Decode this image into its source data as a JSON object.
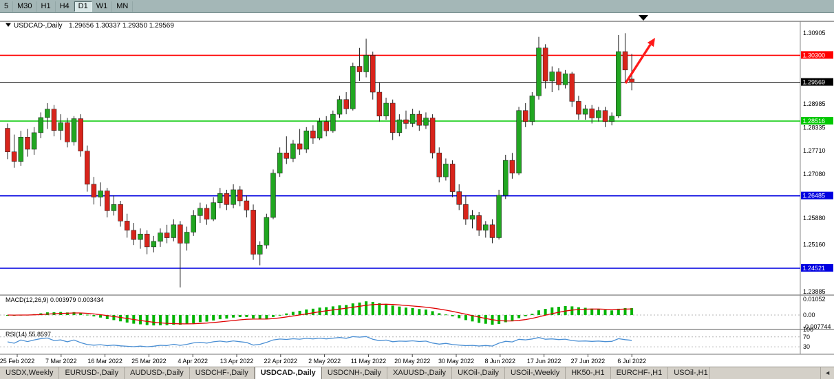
{
  "toolbar": {
    "periods": [
      {
        "label": "5",
        "active": false
      },
      {
        "label": "M30",
        "active": false
      },
      {
        "label": "H1",
        "active": false
      },
      {
        "label": "H4",
        "active": false
      },
      {
        "label": "D1",
        "active": true
      },
      {
        "label": "W1",
        "active": false
      },
      {
        "label": "MN",
        "active": false
      }
    ]
  },
  "chart": {
    "symbol_label": "USDCAD-,Daily",
    "ohlc_text": "1.29656 1.30337 1.29350 1.29569",
    "price_axis_plain": [
      "1.30905",
      "1.28985",
      "1.28335",
      "1.27710",
      "1.27080",
      "1.25880",
      "1.25160",
      "1.23885"
    ],
    "levels": [
      {
        "name": "resistance-line-red",
        "price": 1.303,
        "label": "1.30300",
        "color": "#FF0000"
      },
      {
        "name": "current-price-line",
        "price": 1.29569,
        "label": "1.29569",
        "color": "#000000",
        "current": true
      },
      {
        "name": "support-line-green",
        "price": 1.28516,
        "label": "1.28516",
        "color": "#00C800"
      },
      {
        "name": "support-line-blue-upper",
        "price": 1.26485,
        "label": "1.26485",
        "color": "#0000E0"
      },
      {
        "name": "support-line-blue-lower",
        "price": 1.24521,
        "label": "1.24521",
        "color": "#0000E0"
      }
    ]
  },
  "macd": {
    "label": "MACD(12,26,9) 0.003979 0.003434",
    "axis_labels": [
      "0.01052",
      "0.00",
      "-0.007744"
    ]
  },
  "rsi": {
    "label": "RSI(14) 55.8597",
    "axis_labels": [
      "100",
      "70",
      "30"
    ],
    "levels": [
      70,
      30
    ]
  },
  "date_axis": [
    "25 Feb 2022",
    "7 Mar 2022",
    "16 Mar 2022",
    "25 Mar 2022",
    "4 Apr 2022",
    "13 Apr 2022",
    "22 Apr 2022",
    "2 May 2022",
    "11 May 2022",
    "20 May 2022",
    "30 May 2022",
    "8 Jun 2022",
    "17 Jun 2022",
    "27 Jun 2022",
    "6 Jul 2022"
  ],
  "tab_bar": {
    "tabs": [
      {
        "label": "USDX,Weekly",
        "active": false
      },
      {
        "label": "EURUSD-,Daily",
        "active": false
      },
      {
        "label": "AUDUSD-,Daily",
        "active": false
      },
      {
        "label": "USDCHF-,Daily",
        "active": false
      },
      {
        "label": "USDCAD-,Daily",
        "active": true
      },
      {
        "label": "USDCNH-,Daily",
        "active": false
      },
      {
        "label": "XAUUSD-,Daily",
        "active": false
      },
      {
        "label": "UKOil-,Daily",
        "active": false
      },
      {
        "label": "USOil-,Weekly",
        "active": false
      },
      {
        "label": "HK50-,H1",
        "active": false
      },
      {
        "label": "EURCHF-,H1",
        "active": false
      },
      {
        "label": "USOil-,H1",
        "active": false,
        "clipped": true
      }
    ],
    "scroll_left": "◄"
  },
  "chart_data": {
    "type": "candlestick",
    "symbol": "USDCAD-",
    "timeframe": "Daily",
    "ylim": [
      1.23885,
      1.30905
    ],
    "ohlc_current": {
      "open": 1.29656,
      "high": 1.30337,
      "low": 1.2935,
      "close": 1.29569
    },
    "colors": {
      "up_candle": "#21A621",
      "down_candle": "#D8241B",
      "wick": "#222222",
      "macd_hist": "#00B400",
      "macd_signal": "#E00000",
      "rsi_line": "#4A8FD4",
      "arrow": "#FF1A1A"
    },
    "indicators": {
      "macd": {
        "params": [
          12,
          26,
          9
        ],
        "current_macd": 0.003979,
        "current_signal": 0.003434,
        "ylim": [
          -0.007744,
          0.01052
        ],
        "derived_from": "candles"
      },
      "rsi": {
        "params": [
          14
        ],
        "current": 55.8597,
        "range": [
          0,
          100
        ],
        "levels": [
          70,
          30
        ],
        "derived_from": "candles"
      }
    },
    "candles": [
      [
        1.2832,
        1.2845,
        1.2748,
        1.2768
      ],
      [
        1.2768,
        1.2815,
        1.2725,
        1.2742
      ],
      [
        1.2742,
        1.2825,
        1.273,
        1.2808
      ],
      [
        1.2808,
        1.283,
        1.2755,
        1.2775
      ],
      [
        1.2775,
        1.2835,
        1.276,
        1.282
      ],
      [
        1.282,
        1.2875,
        1.2805,
        1.2861
      ],
      [
        1.2861,
        1.29,
        1.283,
        1.2884
      ],
      [
        1.2884,
        1.2895,
        1.281,
        1.2826
      ],
      [
        1.2826,
        1.287,
        1.28,
        1.2847
      ],
      [
        1.2847,
        1.286,
        1.278,
        1.2795
      ],
      [
        1.2795,
        1.2865,
        1.2785,
        1.2858
      ],
      [
        1.2858,
        1.287,
        1.2755,
        1.277
      ],
      [
        1.277,
        1.2785,
        1.266,
        1.268
      ],
      [
        1.268,
        1.27,
        1.2625,
        1.2645
      ],
      [
        1.2645,
        1.2685,
        1.262,
        1.2662
      ],
      [
        1.2662,
        1.267,
        1.259,
        1.2608
      ],
      [
        1.2608,
        1.265,
        1.2595,
        1.2625
      ],
      [
        1.2625,
        1.2635,
        1.2565,
        1.258
      ],
      [
        1.258,
        1.26,
        1.2535,
        1.2555
      ],
      [
        1.2555,
        1.2575,
        1.2515,
        1.253
      ],
      [
        1.253,
        1.256,
        1.2505,
        1.2545
      ],
      [
        1.2545,
        1.2555,
        1.249,
        1.251
      ],
      [
        1.251,
        1.254,
        1.2495,
        1.2525
      ],
      [
        1.2525,
        1.256,
        1.251,
        1.2548
      ],
      [
        1.2548,
        1.257,
        1.252,
        1.2535
      ],
      [
        1.2535,
        1.2585,
        1.2525,
        1.257
      ],
      [
        1.257,
        1.258,
        1.24,
        1.252
      ],
      [
        1.252,
        1.2565,
        1.25,
        1.255
      ],
      [
        1.255,
        1.261,
        1.254,
        1.2595
      ],
      [
        1.2595,
        1.263,
        1.2575,
        1.2615
      ],
      [
        1.2615,
        1.2625,
        1.257,
        1.2585
      ],
      [
        1.2585,
        1.2645,
        1.258,
        1.263
      ],
      [
        1.263,
        1.267,
        1.2615,
        1.2655
      ],
      [
        1.2655,
        1.2665,
        1.261,
        1.2625
      ],
      [
        1.2625,
        1.268,
        1.2615,
        1.2665
      ],
      [
        1.2665,
        1.2675,
        1.262,
        1.2635
      ],
      [
        1.2635,
        1.265,
        1.259,
        1.261
      ],
      [
        1.261,
        1.2625,
        1.2475,
        1.249
      ],
      [
        1.249,
        1.2525,
        1.246,
        1.2515
      ],
      [
        1.2515,
        1.26,
        1.2505,
        1.259
      ],
      [
        1.259,
        1.272,
        1.2585,
        1.271
      ],
      [
        1.271,
        1.278,
        1.27,
        1.2765
      ],
      [
        1.2765,
        1.281,
        1.2735,
        1.275
      ],
      [
        1.275,
        1.28,
        1.274,
        1.279
      ],
      [
        1.279,
        1.283,
        1.276,
        1.2775
      ],
      [
        1.2775,
        1.2835,
        1.2765,
        1.2825
      ],
      [
        1.2825,
        1.284,
        1.279,
        1.2805
      ],
      [
        1.2805,
        1.286,
        1.28,
        1.285
      ],
      [
        1.285,
        1.2865,
        1.281,
        1.2825
      ],
      [
        1.2825,
        1.288,
        1.282,
        1.287
      ],
      [
        1.287,
        1.292,
        1.286,
        1.291
      ],
      [
        1.291,
        1.293,
        1.287,
        1.2885
      ],
      [
        1.2885,
        1.301,
        1.288,
        1.3
      ],
      [
        1.3,
        1.305,
        1.296,
        1.2985
      ],
      [
        1.2985,
        1.3075,
        1.297,
        1.303
      ],
      [
        1.303,
        1.304,
        1.291,
        1.293
      ],
      [
        1.293,
        1.2955,
        1.285,
        1.2865
      ],
      [
        1.2865,
        1.2915,
        1.2855,
        1.29
      ],
      [
        1.29,
        1.291,
        1.28,
        1.282
      ],
      [
        1.282,
        1.287,
        1.281,
        1.2855
      ],
      [
        1.2855,
        1.288,
        1.283,
        1.2845
      ],
      [
        1.2845,
        1.2885,
        1.2835,
        1.287
      ],
      [
        1.287,
        1.288,
        1.2825,
        1.284
      ],
      [
        1.284,
        1.2875,
        1.283,
        1.286
      ],
      [
        1.286,
        1.287,
        1.275,
        1.2765
      ],
      [
        1.2765,
        1.278,
        1.2685,
        1.27
      ],
      [
        1.27,
        1.275,
        1.269,
        1.2735
      ],
      [
        1.2735,
        1.2745,
        1.2645,
        1.266
      ],
      [
        1.266,
        1.268,
        1.261,
        1.2625
      ],
      [
        1.2625,
        1.265,
        1.257,
        1.2585
      ],
      [
        1.2585,
        1.261,
        1.256,
        1.2595
      ],
      [
        1.2595,
        1.2605,
        1.254,
        1.2555
      ],
      [
        1.2555,
        1.258,
        1.2535,
        1.257
      ],
      [
        1.257,
        1.2585,
        1.252,
        1.2535
      ],
      [
        1.2535,
        1.2665,
        1.253,
        1.265
      ],
      [
        1.265,
        1.276,
        1.264,
        1.2745
      ],
      [
        1.2745,
        1.2765,
        1.2695,
        1.271
      ],
      [
        1.271,
        1.289,
        1.2705,
        1.288
      ],
      [
        1.288,
        1.29,
        1.2835,
        1.285
      ],
      [
        1.285,
        1.293,
        1.284,
        1.292
      ],
      [
        1.292,
        1.308,
        1.291,
        1.305
      ],
      [
        1.305,
        1.306,
        1.294,
        1.296
      ],
      [
        1.296,
        1.3,
        1.293,
        1.2985
      ],
      [
        1.2985,
        1.2995,
        1.2935,
        1.295
      ],
      [
        1.295,
        1.299,
        1.294,
        1.298
      ],
      [
        1.298,
        1.2985,
        1.289,
        1.2905
      ],
      [
        1.2905,
        1.292,
        1.2855,
        1.287
      ],
      [
        1.287,
        1.2895,
        1.2855,
        1.2885
      ],
      [
        1.2885,
        1.2895,
        1.2845,
        1.286
      ],
      [
        1.286,
        1.289,
        1.285,
        1.288
      ],
      [
        1.288,
        1.289,
        1.2835,
        1.285
      ],
      [
        1.285,
        1.2875,
        1.284,
        1.2865
      ],
      [
        1.2865,
        1.3085,
        1.286,
        1.304
      ],
      [
        1.304,
        1.309,
        1.2955,
        1.299
      ],
      [
        1.29656,
        1.30337,
        1.2935,
        1.29569
      ]
    ]
  }
}
